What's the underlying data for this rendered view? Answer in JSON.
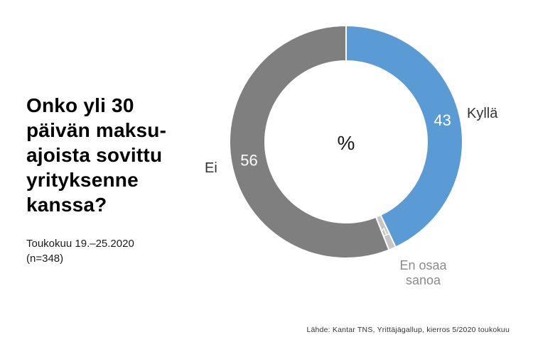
{
  "page": {
    "title": "Onko yli 30\npäivän maksu-\najoista sovittu\nyrityksenne\nkanssa?",
    "survey_period": "Toukokuu 19.–25.2020",
    "sample_size": "(n=348)",
    "source": "Lähde: Kantar TNS, Yrittäjägallup, kierros 5/2020 toukokuu"
  },
  "chart_data": {
    "type": "pie",
    "subtype": "donut",
    "center_label": "%",
    "start_angle_deg": 0,
    "direction": "clockwise",
    "legend_position": "outside-labels",
    "total": 100,
    "slices": [
      {
        "label": "Kyllä",
        "value": 43,
        "color": "#5B9BD5",
        "value_label_color": "#FFFFFF"
      },
      {
        "label": "En osaa sanoa",
        "value": 1,
        "color": "#C5C5C5",
        "value_label_color": "#FFFFFF"
      },
      {
        "label": "Ei",
        "value": 56,
        "color": "#7F7F7F",
        "value_label_color": "#FFFFFF"
      }
    ],
    "colors": {
      "separator": "#FFFFFF",
      "outside_label_text": "#333333",
      "muted_label_text": "#8A8A8A"
    }
  }
}
